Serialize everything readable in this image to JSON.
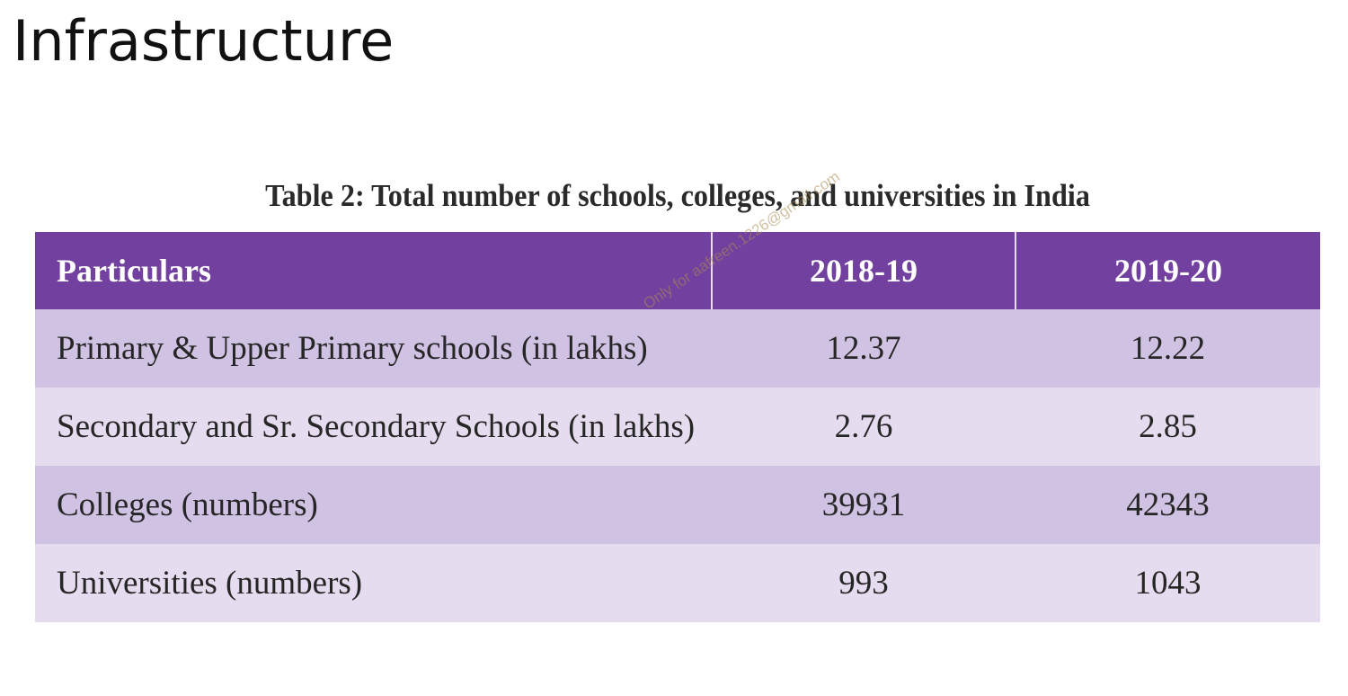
{
  "slide": {
    "title": "Infrastructure"
  },
  "table": {
    "caption": "Table 2: Total number of schools, colleges, and universities in India",
    "headers": [
      "Particulars",
      "2018-19",
      "2019-20"
    ],
    "rows": [
      {
        "label": "Primary & Upper Primary schools (in lakhs)",
        "y2018_19": "12.37",
        "y2019_20": "12.22"
      },
      {
        "label": "Secondary and Sr. Secondary Schools (in lakhs)",
        "y2018_19": "2.76",
        "y2019_20": "2.85"
      },
      {
        "label": "Colleges (numbers)",
        "y2018_19": "39931",
        "y2019_20": "42343"
      },
      {
        "label": "Universities (numbers)",
        "y2018_19": "993",
        "y2019_20": "1043"
      }
    ]
  },
  "watermark": {
    "text": "Only for aafreen.1226@gmail.com"
  },
  "colors": {
    "header_bg": "#7241a0",
    "row_odd_bg": "#cfc2e3",
    "row_even_bg": "#e6dcef"
  }
}
